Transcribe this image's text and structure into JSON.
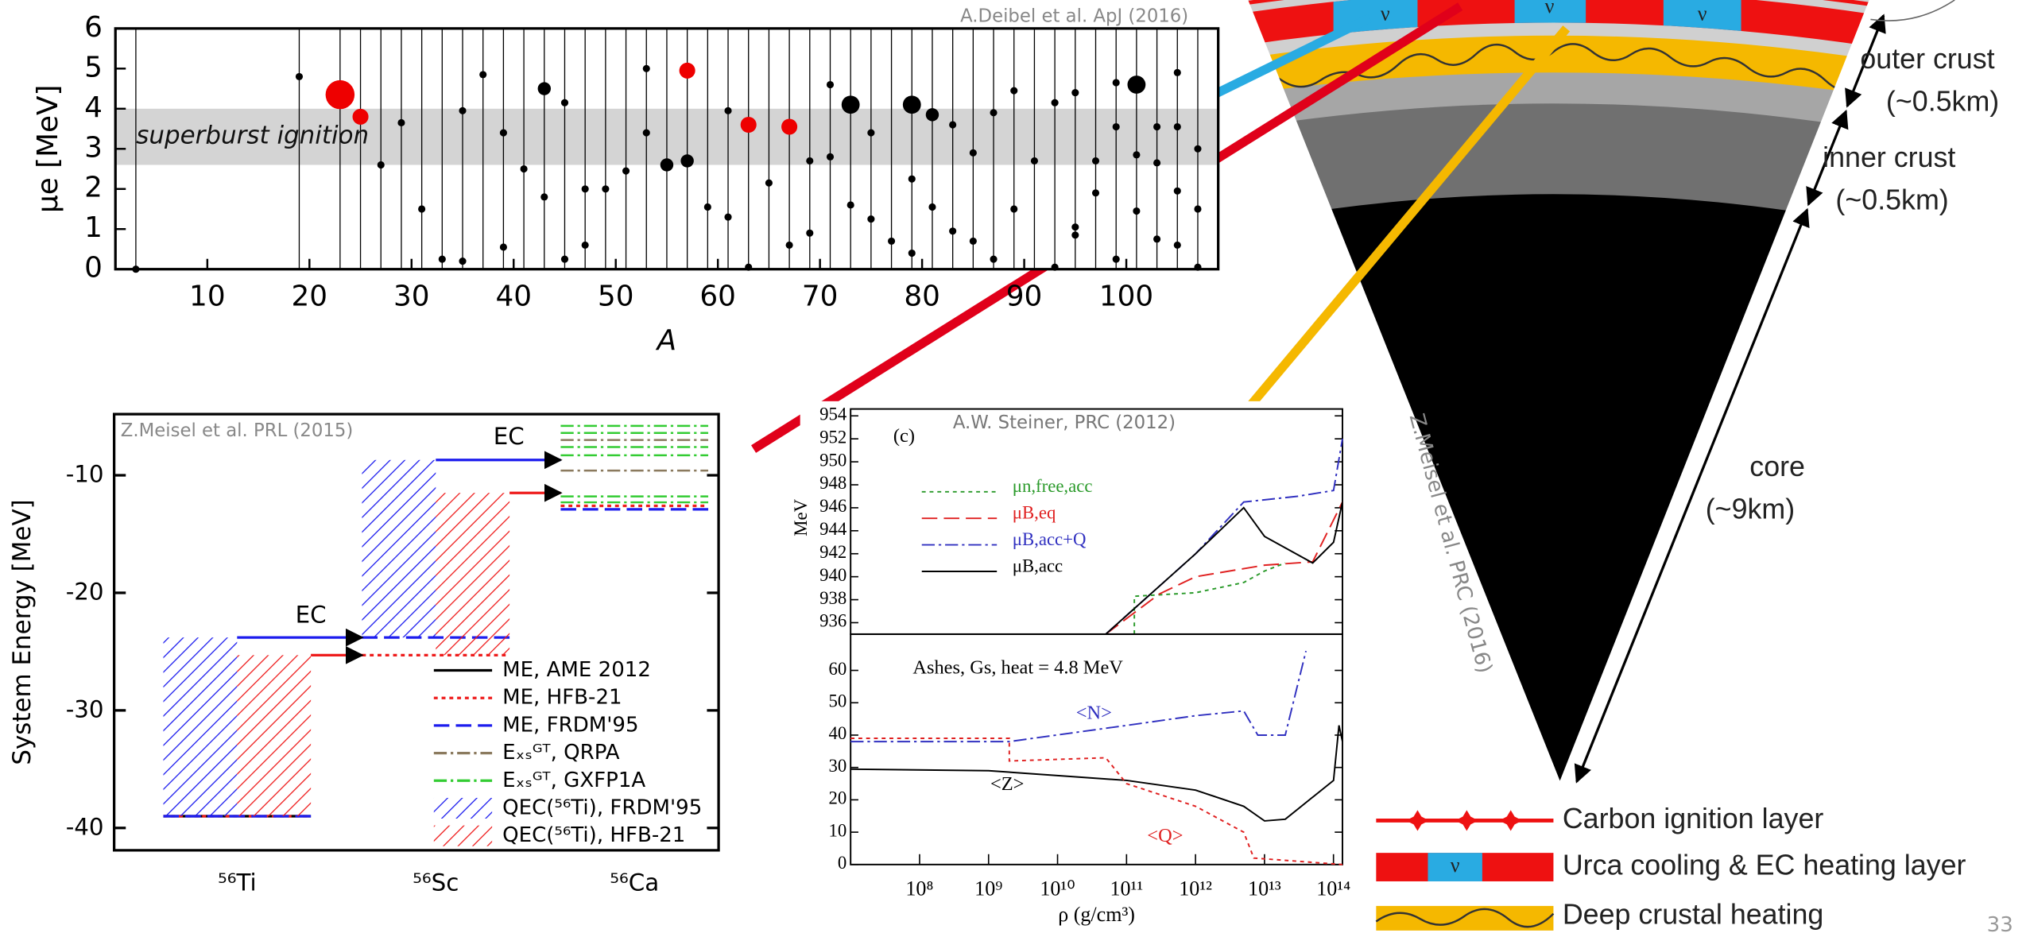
{
  "chart_data": [
    {
      "type": "scatter",
      "citation": "A.Deibel et al. ApJ (2016)",
      "x_label": "A",
      "y_label": "μe [MeV]",
      "xlim": [
        1,
        109
      ],
      "ylim": [
        0,
        6
      ],
      "xticks": [
        10,
        20,
        30,
        40,
        50,
        60,
        70,
        80,
        90,
        100
      ],
      "yticks": [
        0,
        1,
        2,
        3,
        4,
        5,
        6
      ],
      "band": {
        "label": "superburst ignition",
        "range": [
          2.6,
          4.0
        ],
        "color": "#d4d4d4"
      },
      "series": [
        {
          "color": "#000000",
          "x": [
            3,
            19,
            27,
            29,
            31,
            33,
            35,
            35,
            37,
            39,
            39,
            41,
            43,
            43,
            45,
            45,
            47,
            47,
            49,
            51,
            53,
            53,
            55,
            57,
            59,
            61,
            61,
            63,
            65,
            67,
            69,
            69,
            71,
            71,
            73,
            73,
            75,
            75,
            77,
            79,
            79,
            79,
            81,
            81,
            83,
            83,
            85,
            85,
            87,
            87,
            89,
            89,
            91,
            93,
            93,
            95,
            95,
            95,
            97,
            97,
            99,
            99,
            99,
            101,
            101,
            101,
            103,
            103,
            103,
            105,
            105,
            105,
            105,
            107,
            107,
            107
          ],
          "values": [
            0,
            4.8,
            2.6,
            3.65,
            1.5,
            0.25,
            0.2,
            3.95,
            4.85,
            3.4,
            0.55,
            2.5,
            4.5,
            1.8,
            4.15,
            0.25,
            2.0,
            0.6,
            2.0,
            2.45,
            5.0,
            3.4,
            2.6,
            2.7,
            1.55,
            3.95,
            1.3,
            0.05,
            2.15,
            0.6,
            2.7,
            0.9,
            4.6,
            2.8,
            4.1,
            1.6,
            3.4,
            1.25,
            0.7,
            4.1,
            2.25,
            0.4,
            3.85,
            1.55,
            3.6,
            0.95,
            2.9,
            0.7,
            3.9,
            0.25,
            4.45,
            1.5,
            2.7,
            0.05,
            4.15,
            4.4,
            1.05,
            0.85,
            2.7,
            1.9,
            4.65,
            3.55,
            0.25,
            4.6,
            2.85,
            1.45,
            3.55,
            2.65,
            0.75,
            4.9,
            3.55,
            1.95,
            0.6,
            3.0,
            1.5,
            0.05
          ],
          "sizes": [
            1,
            1,
            1,
            1,
            1,
            1,
            1,
            1,
            1,
            1,
            1,
            1,
            1.8,
            1,
            1,
            1,
            1,
            1,
            1,
            1,
            1,
            1,
            1.8,
            1.8,
            1,
            1,
            1,
            1,
            1,
            1,
            1,
            1,
            1,
            1,
            2.5,
            1,
            1,
            1,
            1,
            2.5,
            1,
            1,
            1.8,
            1,
            1,
            1,
            1,
            1,
            1,
            1,
            1,
            1,
            1,
            1,
            1,
            1,
            1,
            1,
            1,
            1,
            1,
            1,
            1,
            2.5,
            1,
            1,
            1,
            1,
            1,
            1,
            1,
            1,
            1,
            1,
            1,
            1
          ]
        },
        {
          "color": "#ee0000",
          "x": [
            23,
            25,
            57,
            63,
            67
          ],
          "values": [
            4.35,
            3.8,
            4.95,
            3.6,
            3.55
          ],
          "sizes": [
            4,
            2.2,
            2.2,
            2.2,
            2.2
          ]
        }
      ]
    },
    {
      "type": "level",
      "citation": "Z.Meisel et al. PRL (2015)",
      "y_label": "System Energy [MeV]",
      "categories": [
        "⁵⁶Ti",
        "⁵⁶Sc",
        "⁵⁶Ca"
      ],
      "ylim": [
        -41.9,
        -4.8
      ],
      "yticks": [
        -40,
        -30,
        -20,
        -10
      ],
      "annotations": [
        "EC",
        "EC"
      ],
      "series": [
        {
          "name": "ME, AME 2012",
          "color": "#000000",
          "style": "solid",
          "values": [
            -39,
            null,
            null
          ]
        },
        {
          "name": "ME, HFB-21",
          "color": "#ee1c1c",
          "style": "dotted",
          "values": [
            -39,
            -25.3,
            -12.6
          ]
        },
        {
          "name": "ME, FRDM'95",
          "color": "#1c1cee",
          "style": "dashed",
          "values": [
            -39,
            -23.8,
            -12.9
          ]
        },
        {
          "name": "Eₓₛᴳᵀ, QRPA",
          "color": "#8b7a5e",
          "style": "dashdot",
          "levels": [
            [],
            [],
            [
              -7.0,
              -9.6
            ]
          ]
        },
        {
          "name": "Eₓₛᴳᵀ, GXFP1A",
          "color": "#33cc33",
          "style": "dashdot",
          "levels": [
            [],
            [],
            [
              -5.8,
              -6.4,
              -7.6,
              -8.3,
              -11.8,
              -12.3
            ]
          ]
        },
        {
          "name": "QEC(⁵⁶Ti), FRDM'95",
          "color": "#1c1cee",
          "style": "hatch",
          "boxes": [
            [
              -39,
              -23.8
            ],
            [
              -23.8,
              -8.7
            ]
          ]
        },
        {
          "name": "QEC(⁵⁶Ti), HFB-21",
          "color": "#ee1c1c",
          "style": "hatch",
          "boxes": [
            [
              -39,
              -25.3
            ],
            [
              -25.3,
              -11.5
            ]
          ]
        }
      ]
    },
    {
      "type": "line",
      "citation": "A.W. Steiner, PRC (2012)",
      "panel_label": "(c)",
      "y_label": "MeV",
      "log_x": true,
      "legend": "upper left",
      "xlim": [
        10000000,
        135000000000000
      ],
      "ylim": [
        935,
        954.6
      ],
      "yticks": [
        936,
        938,
        940,
        942,
        944,
        946,
        948,
        950,
        952,
        954
      ],
      "series": [
        {
          "name": "μn,free,acc",
          "color": "#2a9a2a",
          "style": "dotted",
          "x": [
            130000000000,
            130000000000,
            1000000000000,
            5000000000000,
            10000000000000,
            20000000000000
          ],
          "values": [
            935,
            938.3,
            938.6,
            939.5,
            940.5,
            941.2
          ]
        },
        {
          "name": "μB,eq",
          "color": "#e02020",
          "style": "dashed",
          "x": [
            50000000000,
            300000000000,
            1000000000000,
            10000000000000,
            50000000000000,
            135000000000000
          ],
          "values": [
            935,
            938.5,
            940,
            941,
            941.3,
            946.5
          ]
        },
        {
          "name": "μB,acc+Q",
          "color": "#3030c0",
          "style": "dashdot",
          "x": [
            50000000000,
            1000000000000,
            5000000000000,
            30000000000000,
            100000000000000,
            135000000000000
          ],
          "values": [
            935,
            942,
            946.5,
            947,
            947.5,
            952
          ]
        },
        {
          "name": "μB,acc",
          "color": "#000000",
          "style": "solid",
          "x": [
            50000000000,
            1000000000000,
            5000000000000,
            10000000000000,
            50000000000000,
            100000000000000,
            135000000000000
          ],
          "values": [
            935,
            942,
            946,
            943.5,
            941.2,
            943,
            946.5
          ]
        }
      ]
    },
    {
      "type": "line",
      "x_label": "ρ (g/cm³)",
      "annotation": "Ashes, Gs, heat = 4.8 MeV",
      "log_x": true,
      "xlim": [
        10000000,
        135000000000000
      ],
      "ylim": [
        0,
        71.2
      ],
      "yticks": [
        0,
        10,
        20,
        30,
        40,
        50,
        60
      ],
      "xticks": [
        {
          "value": 100000000,
          "label": "10⁸"
        },
        {
          "value": 1000000000,
          "label": "10⁹"
        },
        {
          "value": 10000000000,
          "label": "10¹⁰"
        },
        {
          "value": 100000000000,
          "label": "10¹¹"
        },
        {
          "value": 1000000000000,
          "label": "10¹²"
        },
        {
          "value": 10000000000000,
          "label": "10¹³"
        },
        {
          "value": 100000000000000,
          "label": "10¹⁴"
        }
      ],
      "series": [
        {
          "name": "<N>",
          "color": "#3030c0",
          "style": "dashdot",
          "x": [
            10000000,
            2000000000,
            100000000000,
            1000000000000,
            5000000000000,
            8000000000000,
            20000000000000,
            40000000000000
          ],
          "values": [
            38,
            38,
            43,
            46,
            47.5,
            40,
            40,
            66
          ]
        },
        {
          "name": "<Z>",
          "color": "#000000",
          "style": "solid",
          "x": [
            10000000,
            1000000000,
            100000000000,
            1000000000000,
            5000000000000,
            10000000000000,
            20000000000000,
            100000000000000,
            120000000000000,
            135000000000000
          ],
          "values": [
            29.5,
            29,
            26,
            23,
            18,
            13.5,
            14,
            26,
            43,
            38
          ]
        },
        {
          "name": "<Q>",
          "color": "#e02020",
          "style": "dotted",
          "x": [
            10000000,
            2000000000,
            2000000000,
            50000000000,
            100000000000,
            1000000000000,
            5000000000000,
            7000000000000,
            135000000000000
          ],
          "values": [
            39,
            39,
            32,
            33,
            25,
            18,
            10,
            2,
            0
          ]
        }
      ]
    }
  ],
  "diagram": {
    "outer_crust": "outer crust",
    "outer_crust_depth": "(~0.5km)",
    "inner_crust": "inner crust",
    "inner_crust_depth": "(~0.5km)",
    "core": "core",
    "core_depth": "(~9km)",
    "citation": "Z.Meisel et al. PRC (2016)",
    "urca_symbol": "ν",
    "legend": [
      "Carbon ignition layer",
      "Urca cooling & EC heating layer",
      "Deep crustal heating"
    ]
  },
  "page_number": "33"
}
